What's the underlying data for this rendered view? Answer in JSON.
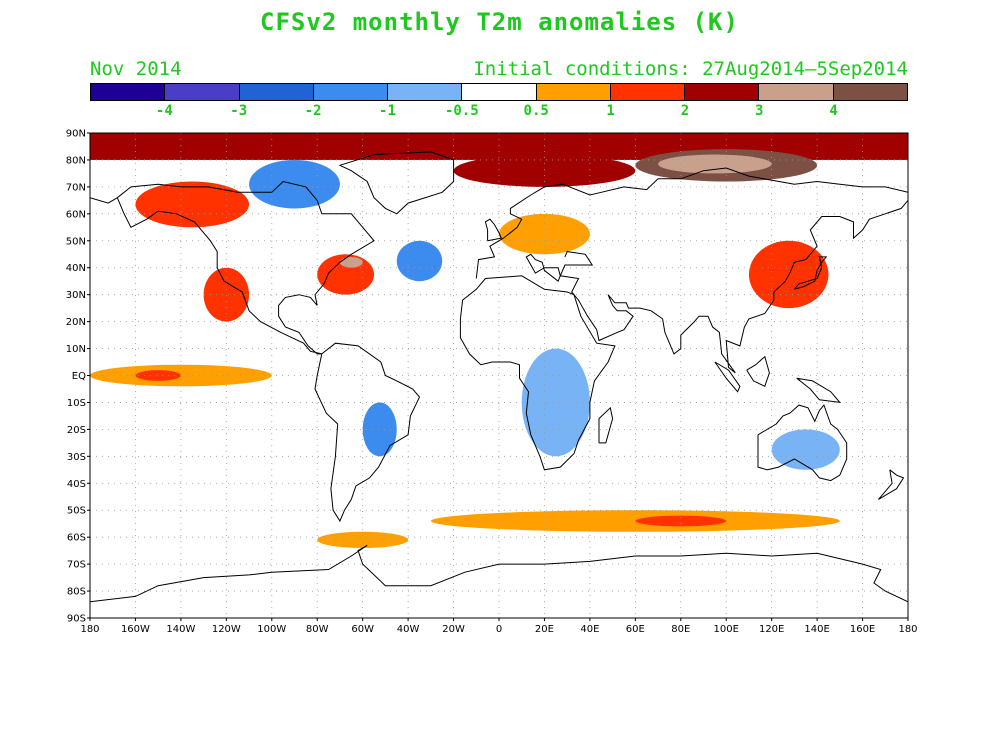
{
  "title": "CFSv2 monthly T2m anomalies (K)",
  "forecast_month": "Nov 2014",
  "initial_conditions": "Initial conditions: 27Aug2014–5Sep2014",
  "colorbar": {
    "colors": [
      "#1e0096",
      "#4a3ec8",
      "#1f64d2",
      "#3c8cf0",
      "#78b4f5",
      "#ffffff",
      "#ffa000",
      "#ff3200",
      "#a00000",
      "#c8a08c",
      "#7d5046"
    ],
    "labels": [
      "-4",
      "-3",
      "-2",
      "-1",
      "-0.5",
      "0.5",
      "1",
      "2",
      "3",
      "4"
    ]
  },
  "axes": {
    "lat_labels": [
      "90N",
      "80N",
      "70N",
      "60N",
      "50N",
      "40N",
      "30N",
      "20N",
      "10N",
      "EQ",
      "10S",
      "20S",
      "30S",
      "40S",
      "50S",
      "60S",
      "70S",
      "80S",
      "90S"
    ],
    "lon_labels": [
      "180",
      "160W",
      "140W",
      "120W",
      "100W",
      "80W",
      "60W",
      "40W",
      "20W",
      "0",
      "20E",
      "40E",
      "60E",
      "80E",
      "100E",
      "120E",
      "140E",
      "160E",
      "180"
    ],
    "grid": true
  },
  "chart_data": {
    "type": "heatmap",
    "units": "K",
    "levels": [
      -4,
      -3,
      -2,
      -1,
      -0.5,
      0.5,
      1,
      2,
      3,
      4
    ],
    "xlim": [
      -180,
      180
    ],
    "ylim": [
      -90,
      90
    ],
    "regions": [
      {
        "lon": [
          -180,
          180
        ],
        "lat": [
          80,
          90
        ],
        "anomaly": 2.5
      },
      {
        "lon": [
          -20,
          60
        ],
        "lat": [
          70,
          82
        ],
        "anomaly": 2.5
      },
      {
        "lon": [
          60,
          140
        ],
        "lat": [
          72,
          84
        ],
        "anomaly": 4.5
      },
      {
        "lon": [
          70,
          120
        ],
        "lat": [
          75,
          82
        ],
        "anomaly": 3.5
      },
      {
        "lon": [
          -160,
          -110
        ],
        "lat": [
          55,
          72
        ],
        "anomaly": 1.5
      },
      {
        "lon": [
          -130,
          -110
        ],
        "lat": [
          20,
          40
        ],
        "anomaly": 1.5
      },
      {
        "lon": [
          -80,
          -55
        ],
        "lat": [
          30,
          45
        ],
        "anomaly": 1.5
      },
      {
        "lon": [
          -70,
          -60
        ],
        "lat": [
          40,
          44
        ],
        "anomaly": 3.5
      },
      {
        "lon": [
          -110,
          -70
        ],
        "lat": [
          62,
          80
        ],
        "anomaly": -1.5
      },
      {
        "lon": [
          -45,
          -25
        ],
        "lat": [
          35,
          50
        ],
        "anomaly": -1.5
      },
      {
        "lon": [
          -60,
          -45
        ],
        "lat": [
          -30,
          -10
        ],
        "anomaly": -1.5
      },
      {
        "lon": [
          10,
          40
        ],
        "lat": [
          -30,
          10
        ],
        "anomaly": -0.7
      },
      {
        "lon": [
          120,
          150
        ],
        "lat": [
          -35,
          -20
        ],
        "anomaly": -0.7
      },
      {
        "lon": [
          -180,
          -100
        ],
        "lat": [
          -4,
          4
        ],
        "anomaly": 0.7
      },
      {
        "lon": [
          -160,
          -140
        ],
        "lat": [
          -2,
          2
        ],
        "anomaly": 1.5
      },
      {
        "lon": [
          -30,
          150
        ],
        "lat": [
          -58,
          -50
        ],
        "anomaly": 0.7
      },
      {
        "lon": [
          60,
          100
        ],
        "lat": [
          -56,
          -52
        ],
        "anomaly": 1.5
      },
      {
        "lon": [
          -80,
          -40
        ],
        "lat": [
          -64,
          -58
        ],
        "anomaly": 0.7
      },
      {
        "lon": [
          110,
          145
        ],
        "lat": [
          25,
          50
        ],
        "anomaly": 1.5
      },
      {
        "lon": [
          0,
          40
        ],
        "lat": [
          45,
          60
        ],
        "anomaly": 0.7
      }
    ]
  }
}
